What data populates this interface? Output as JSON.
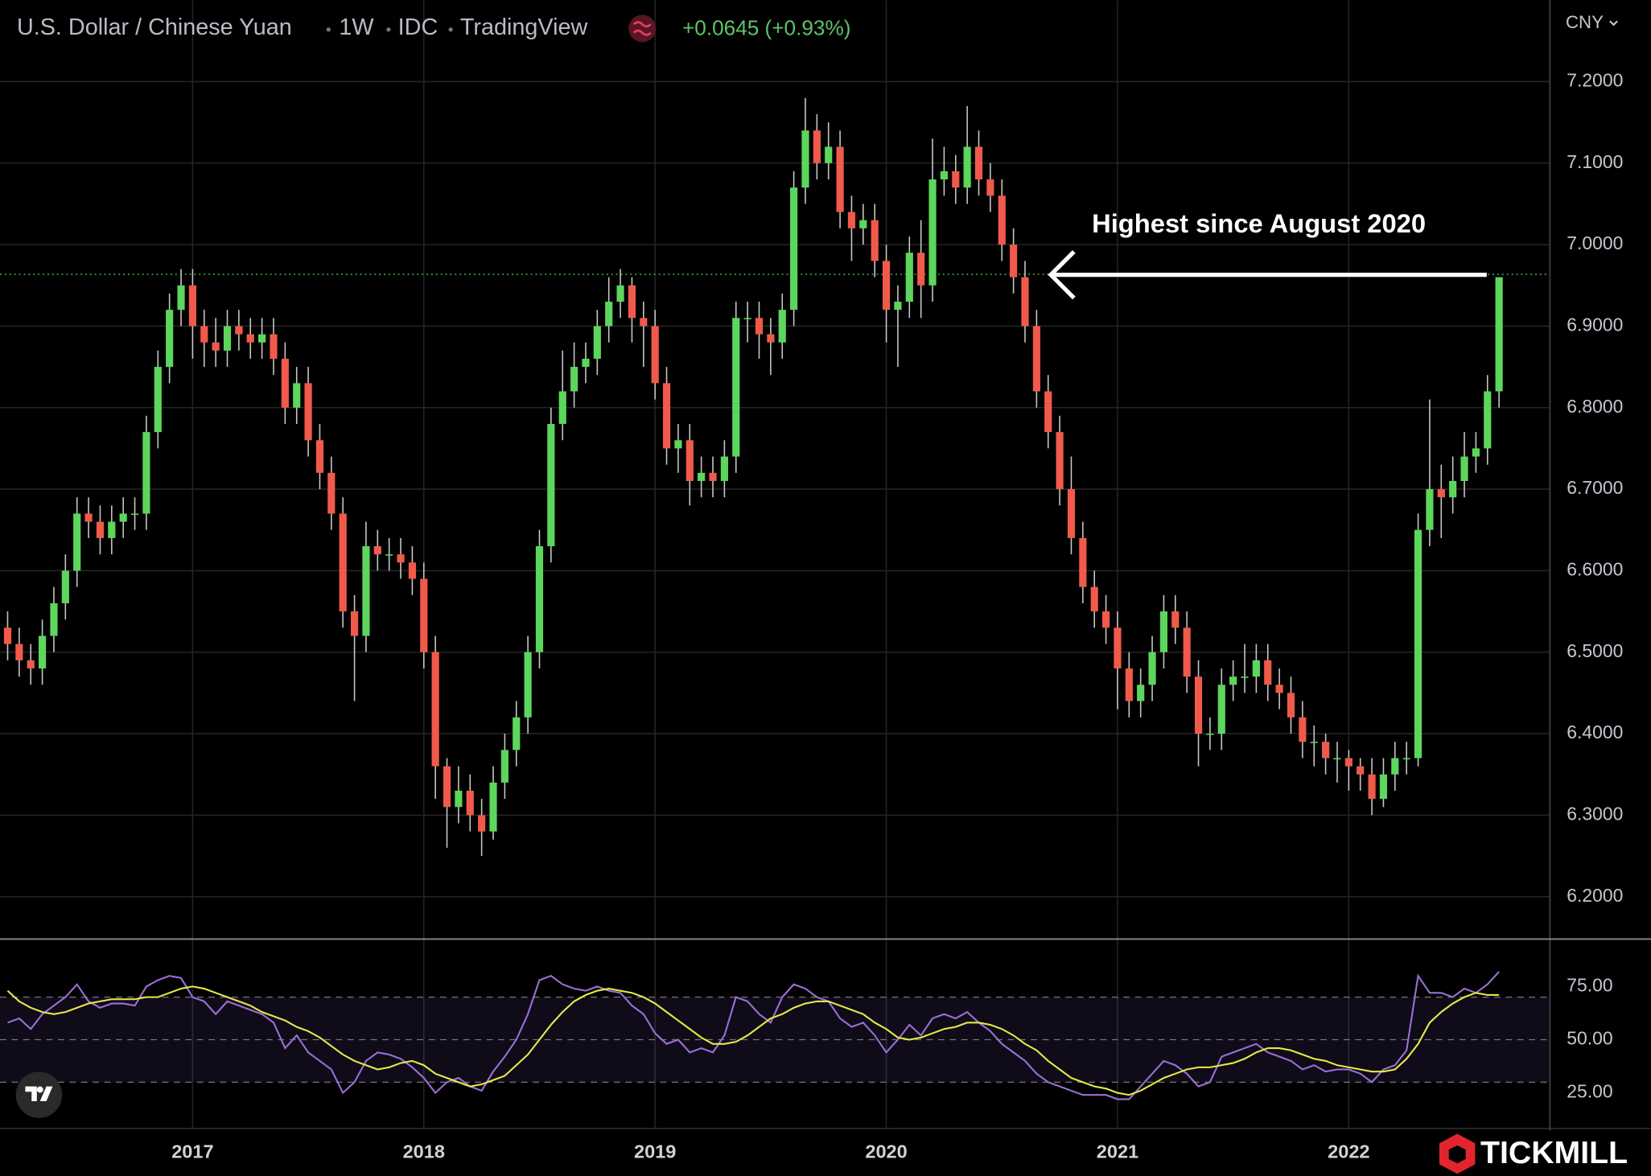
{
  "chart_data": {
    "type": "candlestick",
    "title": "U.S. Dollar / Chinese Yuan",
    "interval": "1W",
    "source": "IDC",
    "platform": "TradingView",
    "change": "+0.0645 (+0.93%)",
    "currency": "CNY",
    "annotation": "Highest since August 2020",
    "watermark": "TICKMILL",
    "reference_line": 6.9636,
    "up_color": "#5cd65c",
    "down_color": "#f05a4a",
    "wick_color": "#c8c8c8",
    "grid": true,
    "x": [
      2016.2,
      2016.25,
      2016.3,
      2016.35,
      2016.4,
      2016.45,
      2016.5,
      2016.55,
      2016.6,
      2016.65,
      2016.7,
      2016.75,
      2016.8,
      2016.85,
      2016.9,
      2016.95,
      2017.0,
      2017.05,
      2017.1,
      2017.15,
      2017.2,
      2017.25,
      2017.3,
      2017.35,
      2017.4,
      2017.45,
      2017.5,
      2017.55,
      2017.6,
      2017.65,
      2017.7,
      2017.75,
      2017.8,
      2017.85,
      2017.9,
      2017.95,
      2018.0,
      2018.05,
      2018.1,
      2018.15,
      2018.2,
      2018.25,
      2018.3,
      2018.35,
      2018.4,
      2018.45,
      2018.5,
      2018.55,
      2018.6,
      2018.65,
      2018.7,
      2018.75,
      2018.8,
      2018.85,
      2018.9,
      2018.95,
      2019.0,
      2019.05,
      2019.1,
      2019.15,
      2019.2,
      2019.25,
      2019.3,
      2019.35,
      2019.4,
      2019.45,
      2019.5,
      2019.55,
      2019.6,
      2019.65,
      2019.7,
      2019.75,
      2019.8,
      2019.85,
      2019.9,
      2019.95,
      2020.0,
      2020.05,
      2020.1,
      2020.15,
      2020.2,
      2020.25,
      2020.3,
      2020.35,
      2020.4,
      2020.45,
      2020.5,
      2020.55,
      2020.6,
      2020.65,
      2020.7,
      2020.75,
      2020.8,
      2020.85,
      2020.9,
      2020.95,
      2021.0,
      2021.05,
      2021.1,
      2021.15,
      2021.2,
      2021.25,
      2021.3,
      2021.35,
      2021.4,
      2021.45,
      2021.5,
      2021.55,
      2021.6,
      2021.65,
      2021.7,
      2021.75,
      2021.8,
      2021.85,
      2021.9,
      2021.95,
      2022.0,
      2022.05,
      2022.1,
      2022.15,
      2022.2,
      2022.25,
      2022.3,
      2022.35,
      2022.4,
      2022.45,
      2022.5,
      2022.55,
      2022.6,
      2022.65
    ],
    "open": [
      6.53,
      6.51,
      6.49,
      6.48,
      6.52,
      6.56,
      6.6,
      6.67,
      6.66,
      6.64,
      6.66,
      6.67,
      6.67,
      6.77,
      6.85,
      6.92,
      6.95,
      6.9,
      6.88,
      6.87,
      6.9,
      6.89,
      6.88,
      6.89,
      6.86,
      6.8,
      6.83,
      6.76,
      6.72,
      6.67,
      6.55,
      6.52,
      6.63,
      6.62,
      6.62,
      6.61,
      6.59,
      6.5,
      6.36,
      6.31,
      6.33,
      6.3,
      6.28,
      6.34,
      6.38,
      6.42,
      6.5,
      6.63,
      6.78,
      6.82,
      6.85,
      6.86,
      6.9,
      6.93,
      6.95,
      6.91,
      6.9,
      6.83,
      6.75,
      6.76,
      6.71,
      6.72,
      6.71,
      6.74,
      6.91,
      6.91,
      6.89,
      6.88,
      6.92,
      7.07,
      7.14,
      7.1,
      7.12,
      7.04,
      7.02,
      7.03,
      6.98,
      6.92,
      6.93,
      6.99,
      6.95,
      7.08,
      7.09,
      7.07,
      7.12,
      7.08,
      7.06,
      7.0,
      6.96,
      6.9,
      6.82,
      6.77,
      6.7,
      6.64,
      6.58,
      6.55,
      6.53,
      6.48,
      6.44,
      6.46,
      6.5,
      6.55,
      6.53,
      6.47,
      6.4,
      6.4,
      6.46,
      6.47,
      6.47,
      6.49,
      6.46,
      6.45,
      6.42,
      6.39,
      6.39,
      6.37,
      6.37,
      6.36,
      6.35,
      6.32,
      6.35,
      6.37,
      6.37,
      6.65,
      6.7,
      6.69,
      6.71,
      6.74,
      6.75,
      6.82
    ],
    "high": [
      6.55,
      6.53,
      6.51,
      6.54,
      6.58,
      6.62,
      6.69,
      6.69,
      6.68,
      6.68,
      6.69,
      6.69,
      6.79,
      6.87,
      6.94,
      6.97,
      6.97,
      6.92,
      6.91,
      6.92,
      6.92,
      6.91,
      6.91,
      6.91,
      6.88,
      6.85,
      6.85,
      6.78,
      6.74,
      6.69,
      6.57,
      6.66,
      6.65,
      6.64,
      6.64,
      6.63,
      6.61,
      6.52,
      6.37,
      6.36,
      6.35,
      6.32,
      6.36,
      6.4,
      6.44,
      6.52,
      6.65,
      6.8,
      6.87,
      6.88,
      6.88,
      6.92,
      6.96,
      6.97,
      6.96,
      6.93,
      6.92,
      6.85,
      6.78,
      6.78,
      6.74,
      6.74,
      6.76,
      6.93,
      6.93,
      6.93,
      6.91,
      6.94,
      7.09,
      7.18,
      7.16,
      7.15,
      7.14,
      7.06,
      7.05,
      7.05,
      7.0,
      6.95,
      7.01,
      7.03,
      7.13,
      7.12,
      7.11,
      7.17,
      7.14,
      7.1,
      7.08,
      7.02,
      6.98,
      6.92,
      6.84,
      6.79,
      6.74,
      6.66,
      6.6,
      6.57,
      6.55,
      6.5,
      6.48,
      6.52,
      6.57,
      6.57,
      6.55,
      6.49,
      6.42,
      6.48,
      6.49,
      6.51,
      6.51,
      6.51,
      6.48,
      6.47,
      6.44,
      6.41,
      6.4,
      6.39,
      6.38,
      6.37,
      6.37,
      6.37,
      6.39,
      6.39,
      6.67,
      6.81,
      6.73,
      6.74,
      6.77,
      6.77,
      6.84,
      6.96
    ],
    "low": [
      6.49,
      6.47,
      6.46,
      6.46,
      6.5,
      6.54,
      6.58,
      6.64,
      6.62,
      6.62,
      6.64,
      6.65,
      6.65,
      6.75,
      6.83,
      6.9,
      6.86,
      6.85,
      6.85,
      6.85,
      6.87,
      6.86,
      6.86,
      6.84,
      6.78,
      6.78,
      6.74,
      6.7,
      6.65,
      6.53,
      6.44,
      6.5,
      6.6,
      6.6,
      6.59,
      6.57,
      6.48,
      6.32,
      6.26,
      6.29,
      6.28,
      6.25,
      6.27,
      6.32,
      6.36,
      6.4,
      6.48,
      6.61,
      6.76,
      6.8,
      6.83,
      6.84,
      6.88,
      6.91,
      6.88,
      6.85,
      6.81,
      6.73,
      6.72,
      6.68,
      6.69,
      6.69,
      6.69,
      6.72,
      6.88,
      6.86,
      6.84,
      6.86,
      6.9,
      7.05,
      7.08,
      7.08,
      7.02,
      6.98,
      7.0,
      6.96,
      6.88,
      6.85,
      6.91,
      6.91,
      6.93,
      7.06,
      7.05,
      7.05,
      7.06,
      7.04,
      6.98,
      6.94,
      6.88,
      6.8,
      6.75,
      6.68,
      6.62,
      6.56,
      6.53,
      6.51,
      6.43,
      6.42,
      6.42,
      6.44,
      6.48,
      6.51,
      6.45,
      6.36,
      6.38,
      6.38,
      6.44,
      6.45,
      6.45,
      6.44,
      6.43,
      6.4,
      6.37,
      6.36,
      6.35,
      6.34,
      6.33,
      6.33,
      6.3,
      6.31,
      6.33,
      6.35,
      6.36,
      6.63,
      6.64,
      6.67,
      6.69,
      6.72,
      6.73,
      6.8
    ],
    "close": [
      6.51,
      6.49,
      6.48,
      6.52,
      6.56,
      6.6,
      6.67,
      6.66,
      6.64,
      6.66,
      6.67,
      6.67,
      6.77,
      6.85,
      6.92,
      6.95,
      6.9,
      6.88,
      6.87,
      6.9,
      6.89,
      6.88,
      6.89,
      6.86,
      6.8,
      6.83,
      6.76,
      6.72,
      6.67,
      6.55,
      6.52,
      6.63,
      6.62,
      6.62,
      6.61,
      6.59,
      6.5,
      6.36,
      6.31,
      6.33,
      6.3,
      6.28,
      6.34,
      6.38,
      6.42,
      6.5,
      6.63,
      6.78,
      6.82,
      6.85,
      6.86,
      6.9,
      6.93,
      6.95,
      6.91,
      6.9,
      6.83,
      6.75,
      6.76,
      6.71,
      6.72,
      6.71,
      6.74,
      6.91,
      6.91,
      6.89,
      6.88,
      6.92,
      7.07,
      7.14,
      7.1,
      7.12,
      7.04,
      7.02,
      7.03,
      6.98,
      6.92,
      6.93,
      6.99,
      6.95,
      7.08,
      7.09,
      7.07,
      7.12,
      7.08,
      7.06,
      7.0,
      6.96,
      6.9,
      6.82,
      6.77,
      6.7,
      6.64,
      6.58,
      6.55,
      6.53,
      6.48,
      6.44,
      6.46,
      6.5,
      6.55,
      6.53,
      6.47,
      6.4,
      6.4,
      6.46,
      6.47,
      6.47,
      6.49,
      6.46,
      6.45,
      6.42,
      6.39,
      6.39,
      6.37,
      6.37,
      6.36,
      6.35,
      6.32,
      6.35,
      6.37,
      6.37,
      6.65,
      6.7,
      6.69,
      6.71,
      6.74,
      6.75,
      6.82,
      6.96
    ],
    "xlim": [
      2016.167,
      2022.87
    ],
    "xticks": [
      2017,
      2018,
      2019,
      2020,
      2021,
      2022
    ],
    "ylim": [
      6.148,
      7.3
    ],
    "yticks": [
      {
        "value": 6.2,
        "label": "6.2000"
      },
      {
        "value": 6.3,
        "label": "6.3000"
      },
      {
        "value": 6.4,
        "label": "6.4000"
      },
      {
        "value": 6.5,
        "label": "6.5000"
      },
      {
        "value": 6.6,
        "label": "6.6000"
      },
      {
        "value": 6.7,
        "label": "6.7000"
      },
      {
        "value": 6.8,
        "label": "6.8000"
      },
      {
        "value": 6.9,
        "label": "6.9000"
      },
      {
        "value": 7.0,
        "label": "7.0000"
      },
      {
        "value": 7.1,
        "label": "7.1000"
      },
      {
        "value": 7.2,
        "label": "7.2000"
      }
    ],
    "indicator": {
      "type": "line",
      "ylim": [
        8.2,
        97.3
      ],
      "yticks": [
        {
          "value": 25,
          "label": "25.00"
        },
        {
          "value": 50,
          "label": "50.00"
        },
        {
          "value": 75,
          "label": "75.00"
        }
      ],
      "levels": [
        30,
        50,
        70
      ],
      "band_color": "#7e57c2",
      "series": [
        {
          "color": "#9b6fd6",
          "values": [
            58,
            60,
            55,
            62,
            66,
            70,
            76,
            68,
            65,
            67,
            67,
            66,
            75,
            78,
            80,
            79,
            70,
            68,
            62,
            68,
            66,
            64,
            62,
            58,
            46,
            52,
            44,
            40,
            36,
            25,
            30,
            40,
            44,
            43,
            41,
            37,
            32,
            25,
            30,
            32,
            28,
            26,
            35,
            42,
            50,
            62,
            78,
            80,
            76,
            74,
            73,
            75,
            73,
            72,
            66,
            62,
            53,
            48,
            50,
            44,
            46,
            44,
            52,
            70,
            68,
            62,
            58,
            70,
            76,
            74,
            70,
            68,
            60,
            56,
            58,
            52,
            44,
            50,
            57,
            52,
            60,
            62,
            60,
            63,
            58,
            54,
            48,
            44,
            40,
            34,
            30,
            28,
            26,
            24,
            24,
            24,
            22,
            22,
            28,
            34,
            40,
            38,
            34,
            28,
            30,
            42,
            44,
            46,
            48,
            44,
            42,
            40,
            36,
            38,
            35,
            36,
            36,
            34,
            30,
            36,
            38,
            45,
            80,
            72,
            72,
            70,
            74,
            72,
            76,
            82
          ]
        },
        {
          "color": "#e6e84a",
          "values": [
            73,
            68,
            65,
            63,
            62,
            63,
            65,
            67,
            68,
            69,
            69,
            69,
            70,
            70,
            72,
            74,
            75,
            74,
            72,
            70,
            68,
            66,
            63,
            61,
            59,
            56,
            54,
            51,
            47,
            43,
            40,
            38,
            36,
            37,
            39,
            40,
            38,
            34,
            32,
            30,
            28,
            29,
            31,
            33,
            38,
            43,
            50,
            57,
            63,
            68,
            71,
            73,
            74,
            73,
            72,
            70,
            67,
            63,
            59,
            55,
            51,
            48,
            48,
            49,
            52,
            56,
            60,
            62,
            65,
            67,
            68,
            68,
            66,
            64,
            62,
            58,
            55,
            51,
            50,
            51,
            53,
            55,
            56,
            58,
            58,
            57,
            55,
            52,
            48,
            45,
            40,
            36,
            32,
            30,
            28,
            27,
            25,
            24,
            26,
            29,
            32,
            34,
            36,
            37,
            37,
            38,
            39,
            41,
            44,
            46,
            46,
            45,
            43,
            41,
            40,
            38,
            37,
            36,
            35,
            35,
            36,
            41,
            48,
            58,
            63,
            67,
            70,
            72,
            71,
            71
          ]
        }
      ]
    }
  }
}
